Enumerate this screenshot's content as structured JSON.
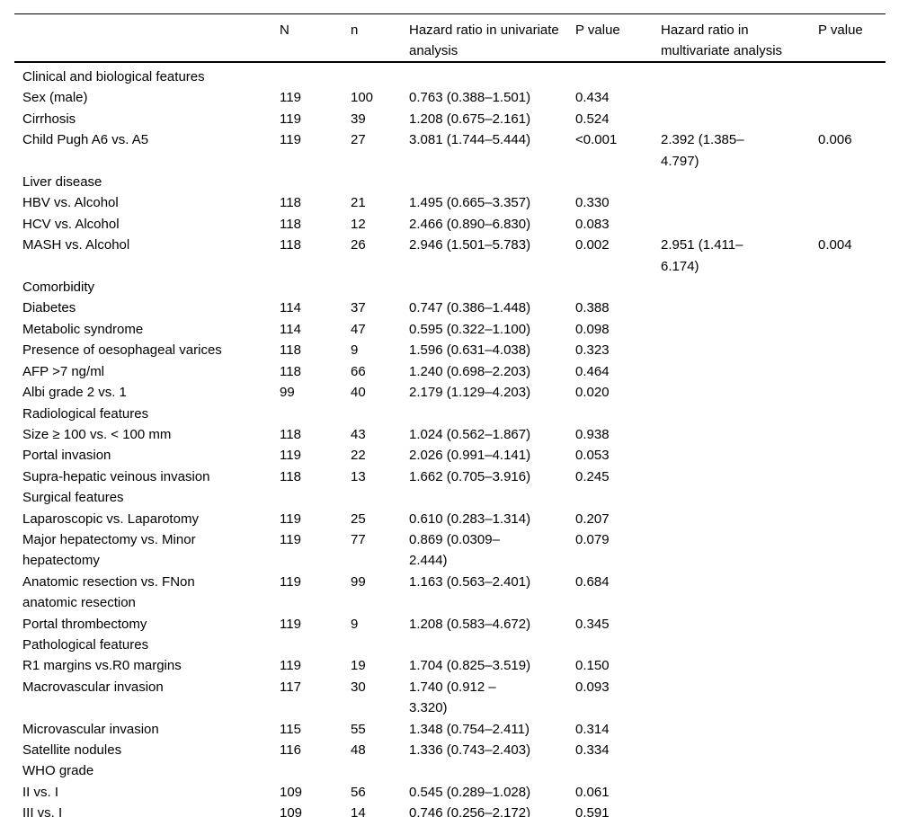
{
  "colors": {
    "background": "#ffffff",
    "text": "#000000",
    "rule": "#000000"
  },
  "table": {
    "header": {
      "feature": "",
      "n_total": "N",
      "n_events": "n",
      "hr_univariate": "Hazard ratio in univariate analysis",
      "p_univariate": "P value",
      "hr_multivariate": "Hazard ratio in multivariate analysis",
      "p_multivariate": "P value"
    },
    "rows": [
      {
        "type": "section",
        "label": "Clinical and biological features"
      },
      {
        "type": "data",
        "label": "Sex (male)",
        "N": "119",
        "n": "100",
        "hr_uni": "0.763 (0.388–1.501)",
        "p_uni": "0.434",
        "hr_multi": "",
        "p_multi": ""
      },
      {
        "type": "data",
        "label": "Cirrhosis",
        "N": "119",
        "n": "39",
        "hr_uni": "1.208 (0.675–2.161)",
        "p_uni": "0.524",
        "hr_multi": "",
        "p_multi": ""
      },
      {
        "type": "data",
        "label": "Child Pugh A6 vs. A5",
        "N": "119",
        "n": "27",
        "hr_uni": "3.081 (1.744–5.444)",
        "p_uni": "<0.001",
        "hr_multi": "2.392 (1.385–\n4.797)",
        "p_multi": "0.006"
      },
      {
        "type": "section",
        "label": "Liver disease"
      },
      {
        "type": "data",
        "label": "HBV vs. Alcohol",
        "N": "118",
        "n": "21",
        "hr_uni": "1.495 (0.665–3.357)",
        "p_uni": "0.330",
        "hr_multi": "",
        "p_multi": ""
      },
      {
        "type": "data",
        "label": "HCV vs. Alcohol",
        "N": "118",
        "n": "12",
        "hr_uni": "2.466 (0.890–6.830)",
        "p_uni": "0.083",
        "hr_multi": "",
        "p_multi": ""
      },
      {
        "type": "data",
        "label": "MASH vs. Alcohol",
        "N": "118",
        "n": "26",
        "hr_uni": "2.946 (1.501–5.783)",
        "p_uni": "0.002",
        "hr_multi": "2.951 (1.411–\n6.174)",
        "p_multi": "0.004"
      },
      {
        "type": "section",
        "label": "Comorbidity"
      },
      {
        "type": "data",
        "label": "Diabetes",
        "N": "114",
        "n": "37",
        "hr_uni": "0.747 (0.386–1.448)",
        "p_uni": "0.388",
        "hr_multi": "",
        "p_multi": ""
      },
      {
        "type": "data",
        "label": "Metabolic syndrome",
        "N": "114",
        "n": "47",
        "hr_uni": "0.595 (0.322–1.100)",
        "p_uni": "0.098",
        "hr_multi": "",
        "p_multi": ""
      },
      {
        "type": "data",
        "label": "Presence of oesophageal varices",
        "N": "118",
        "n": "9",
        "hr_uni": "1.596 (0.631–4.038)",
        "p_uni": "0.323",
        "hr_multi": "",
        "p_multi": ""
      },
      {
        "type": "data",
        "label": "AFP >7 ng/ml",
        "N": "118",
        "n": "66",
        "hr_uni": "1.240 (0.698–2.203)",
        "p_uni": "0.464",
        "hr_multi": "",
        "p_multi": ""
      },
      {
        "type": "data",
        "label": "Albi grade 2 vs. 1",
        "N": "99",
        "n": "40",
        "hr_uni": "2.179 (1.129–4.203)",
        "p_uni": "0.020",
        "hr_multi": "",
        "p_multi": ""
      },
      {
        "type": "section",
        "label": "Radiological features"
      },
      {
        "type": "data",
        "label": "Size ≥ 100 vs. < 100 mm",
        "N": "118",
        "n": "43",
        "hr_uni": "1.024 (0.562–1.867)",
        "p_uni": "0.938",
        "hr_multi": "",
        "p_multi": ""
      },
      {
        "type": "data",
        "label": "Portal invasion",
        "N": "119",
        "n": "22",
        "hr_uni": "2.026 (0.991–4.141)",
        "p_uni": "0.053",
        "hr_multi": "",
        "p_multi": ""
      },
      {
        "type": "data",
        "label": "Supra-hepatic veinous invasion",
        "N": "118",
        "n": "13",
        "hr_uni": "1.662 (0.705–3.916)",
        "p_uni": "0.245",
        "hr_multi": "",
        "p_multi": ""
      },
      {
        "type": "section",
        "label": "Surgical features"
      },
      {
        "type": "data",
        "label": "Laparoscopic vs. Laparotomy",
        "N": "119",
        "n": "25",
        "hr_uni": "0.610 (0.283–1.314)",
        "p_uni": "0.207",
        "hr_multi": "",
        "p_multi": ""
      },
      {
        "type": "data",
        "label": "Major hepatectomy vs. Minor\nhepatectomy",
        "N": "119",
        "n": "77",
        "hr_uni": "0.869 (0.0309–\n2.444)",
        "p_uni": "0.079",
        "hr_multi": "",
        "p_multi": ""
      },
      {
        "type": "data",
        "label": "Anatomic resection vs. FNon\nanatomic resection",
        "N": "119",
        "n": "99",
        "hr_uni": "1.163 (0.563–2.401)",
        "p_uni": "0.684",
        "hr_multi": "",
        "p_multi": ""
      },
      {
        "type": "data",
        "label": "Portal thrombectomy",
        "N": "119",
        "n": "9",
        "hr_uni": "1.208 (0.583–4.672)",
        "p_uni": "0.345",
        "hr_multi": "",
        "p_multi": ""
      },
      {
        "type": "section",
        "label": "Pathological features"
      },
      {
        "type": "data",
        "label": "R1 margins vs.R0 margins",
        "N": "119",
        "n": "19",
        "hr_uni": "1.704 (0.825–3.519)",
        "p_uni": "0.150",
        "hr_multi": "",
        "p_multi": ""
      },
      {
        "type": "data",
        "label": "Macrovascular invasion",
        "N": "117",
        "n": "30",
        "hr_uni": "1.740 (0.912 –\n3.320)",
        "p_uni": "0.093",
        "hr_multi": "",
        "p_multi": ""
      },
      {
        "type": "data",
        "label": "Microvascular invasion",
        "N": "115",
        "n": "55",
        "hr_uni": "1.348 (0.754–2.411)",
        "p_uni": "0.314",
        "hr_multi": "",
        "p_multi": ""
      },
      {
        "type": "data",
        "label": "Satellite nodules",
        "N": "116",
        "n": "48",
        "hr_uni": "1.336 (0.743–2.403)",
        "p_uni": "0.334",
        "hr_multi": "",
        "p_multi": ""
      },
      {
        "type": "section",
        "label": "WHO grade"
      },
      {
        "type": "data",
        "label": "II vs. I",
        "N": "109",
        "n": "56",
        "hr_uni": "0.545 (0.289–1.028)",
        "p_uni": "0.061",
        "hr_multi": "",
        "p_multi": ""
      },
      {
        "type": "data",
        "label": "III vs. I",
        "N": "109",
        "n": "14",
        "hr_uni": "0.746 (0.256–2.172)",
        "p_uni": "0.591",
        "hr_multi": "",
        "p_multi": ""
      }
    ]
  }
}
